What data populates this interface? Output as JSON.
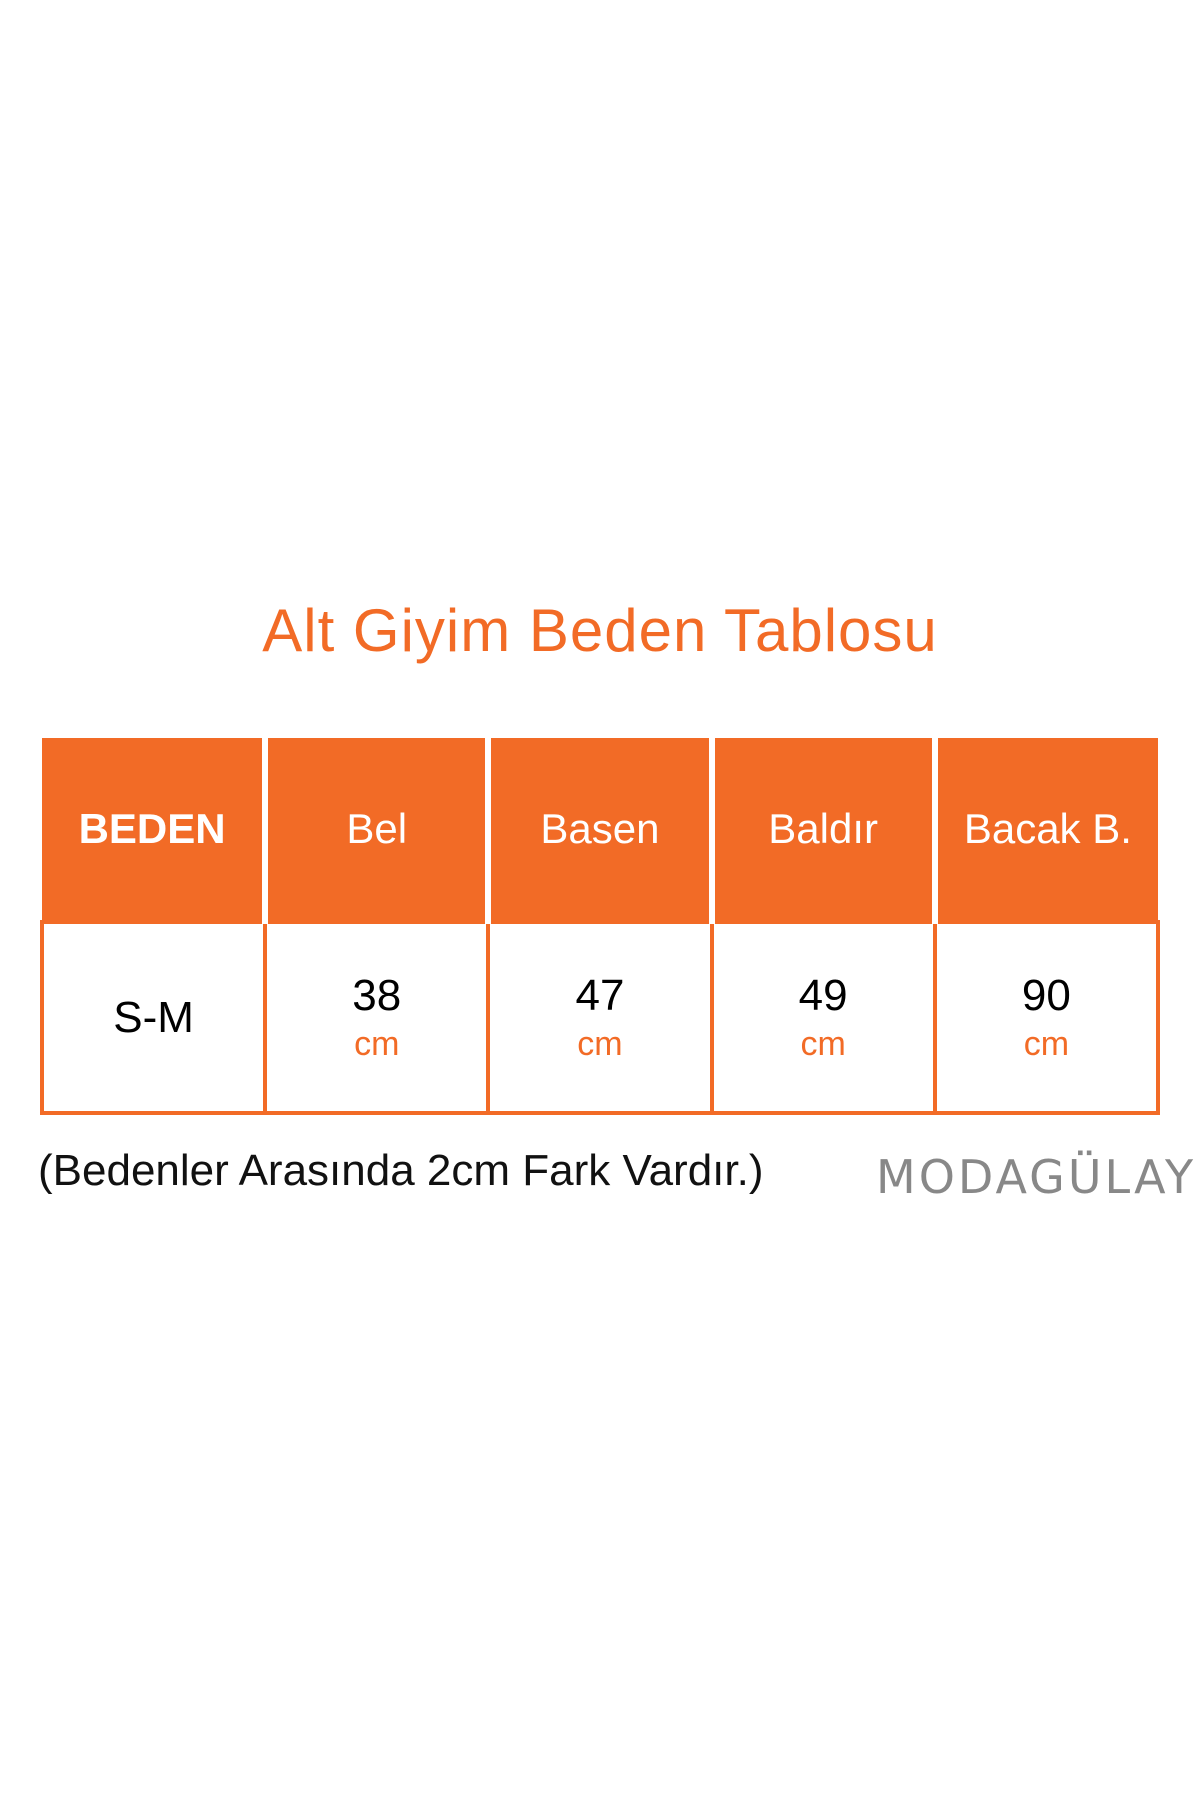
{
  "title": "Alt Giyim Beden Tablosu",
  "table": {
    "headers": [
      "BEDEN",
      "Bel",
      "Basen",
      "Baldır",
      "Bacak B."
    ],
    "rows": [
      {
        "size": "S-M",
        "values": [
          "38",
          "47",
          "49",
          "90"
        ],
        "unit": "cm"
      }
    ]
  },
  "note": "(Bedenler Arasında 2cm Fark Vardır.)",
  "logo": "MODAGÜLAY",
  "colors": {
    "accent": "#f26b26",
    "logo": "#888888"
  }
}
